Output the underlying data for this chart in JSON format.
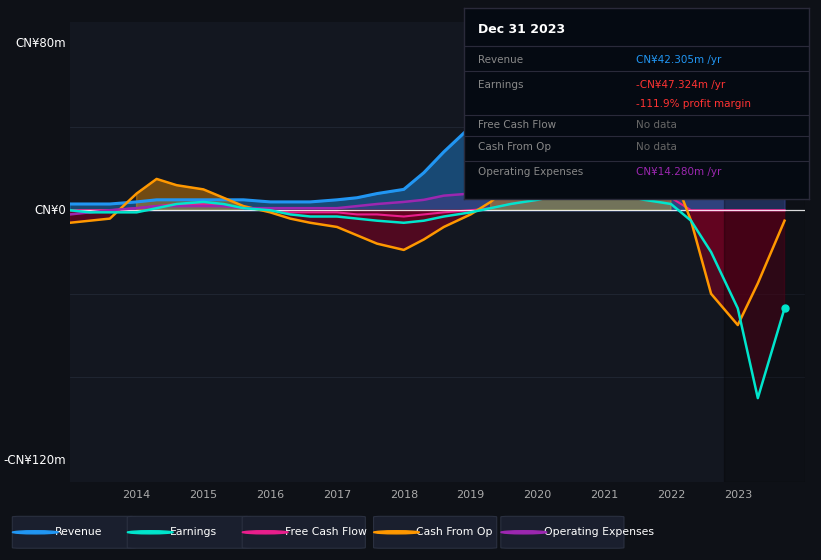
{
  "bg_color": "#0e1117",
  "plot_bg_color": "#131720",
  "ylabel_top": "CN¥80m",
  "ylabel_zero": "CN¥0",
  "ylabel_bottom": "-CN¥120m",
  "years": [
    2013.0,
    2013.3,
    2013.6,
    2014.0,
    2014.3,
    2014.6,
    2015.0,
    2015.3,
    2015.6,
    2016.0,
    2016.3,
    2016.6,
    2017.0,
    2017.3,
    2017.6,
    2018.0,
    2018.3,
    2018.6,
    2019.0,
    2019.3,
    2019.6,
    2020.0,
    2020.3,
    2020.6,
    2021.0,
    2021.3,
    2021.6,
    2022.0,
    2022.3,
    2022.6,
    2023.0,
    2023.3,
    2023.7
  ],
  "revenue": [
    3,
    3,
    3,
    4,
    5,
    5,
    5,
    5,
    5,
    4,
    4,
    4,
    5,
    6,
    8,
    10,
    18,
    28,
    40,
    52,
    60,
    65,
    72,
    78,
    80,
    76,
    70,
    65,
    60,
    55,
    50,
    46,
    42
  ],
  "earnings": [
    0,
    -1,
    -1,
    -1,
    1,
    3,
    4,
    3,
    1,
    0,
    -2,
    -3,
    -3,
    -4,
    -5,
    -6,
    -5,
    -3,
    -1,
    1,
    3,
    5,
    7,
    8,
    8,
    7,
    5,
    3,
    -5,
    -20,
    -47,
    -90,
    -47
  ],
  "cash_from_op": [
    -6,
    -5,
    -4,
    8,
    15,
    12,
    10,
    6,
    2,
    -1,
    -4,
    -6,
    -8,
    -12,
    -16,
    -19,
    -14,
    -8,
    -2,
    4,
    12,
    18,
    24,
    30,
    36,
    32,
    25,
    20,
    -5,
    -40,
    -55,
    -35,
    -5
  ],
  "free_cash_flow": [
    0,
    0,
    0,
    1,
    2,
    3,
    3,
    2,
    1,
    0,
    -1,
    -1,
    -1,
    -2,
    -2,
    -3,
    -2,
    -1,
    0,
    1,
    3,
    5,
    7,
    8,
    9,
    8,
    7,
    6,
    0,
    0,
    0,
    0,
    0
  ],
  "operating_expenses": [
    -2,
    -1,
    0,
    1,
    2,
    2,
    2,
    2,
    1,
    1,
    1,
    1,
    1,
    2,
    3,
    4,
    5,
    7,
    8,
    9,
    10,
    11,
    12,
    13,
    14,
    14,
    14,
    14,
    13,
    13,
    14,
    14,
    14
  ],
  "revenue_color": "#2196f3",
  "earnings_color": "#00e5cc",
  "cash_from_op_color": "#ff9800",
  "free_cash_flow_color": "#e91e8c",
  "operating_expenses_color": "#9c27b0",
  "zero_line_color": "#ffffff",
  "grid_color": "#252d3a",
  "text_color": "#aaaaaa",
  "info_box_bg": "#050a12",
  "info_box_title": "Dec 31 2023",
  "info_revenue_color": "#2196f3",
  "info_earnings_color": "#ff3333",
  "info_opex_color": "#9c27b0",
  "legend_items": [
    "Revenue",
    "Earnings",
    "Free Cash Flow",
    "Cash From Op",
    "Operating Expenses"
  ],
  "legend_colors": [
    "#2196f3",
    "#00e5cc",
    "#e91e8c",
    "#ff9800",
    "#9c27b0"
  ],
  "ylim_min": -130,
  "ylim_max": 90,
  "xlim_min": 2013.0,
  "xlim_max": 2024.0
}
